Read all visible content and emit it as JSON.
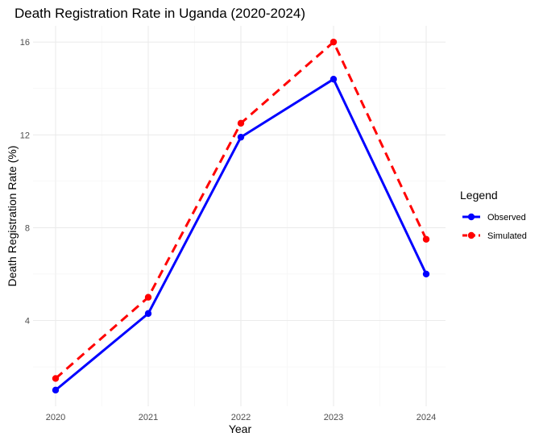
{
  "chart_data": {
    "type": "line",
    "title": "Death Registration Rate in Uganda (2020-2024)",
    "xlabel": "Year",
    "ylabel": "Death Registration Rate (%)",
    "categories": [
      "2020",
      "2021",
      "2022",
      "2023",
      "2024"
    ],
    "ylim": [
      0.3,
      16.7
    ],
    "y_ticks": [
      "4",
      "8",
      "12",
      "16"
    ],
    "grid": true,
    "legend": {
      "title": "Legend",
      "position": "right"
    },
    "series": [
      {
        "name": "Observed",
        "values": [
          1.0,
          4.3,
          11.9,
          14.4,
          6.0
        ],
        "color": "#0000ff",
        "line_style": "solid"
      },
      {
        "name": "Simulated",
        "values": [
          1.5,
          5.0,
          12.5,
          16.0,
          7.5
        ],
        "color": "#ff0000",
        "line_style": "dashed"
      }
    ]
  }
}
